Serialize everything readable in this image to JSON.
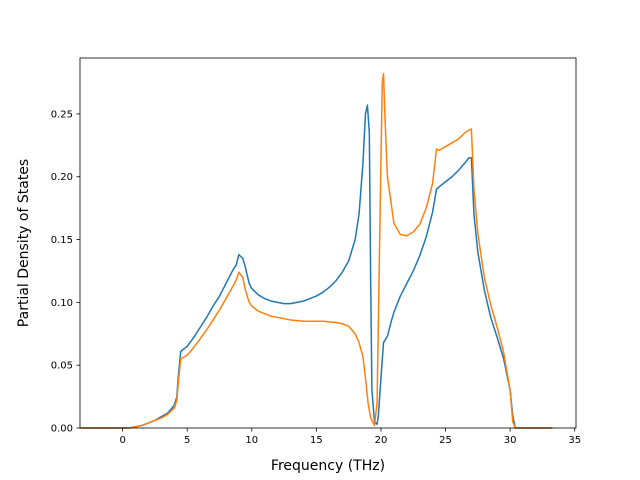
{
  "chart_data": {
    "type": "line",
    "title": "",
    "xlabel": "Frequency (THz)",
    "ylabel": "Partial Density of States",
    "xlim": [
      -3.3,
      35.1
    ],
    "ylim": [
      0.0,
      0.2945
    ],
    "xticks": [
      0,
      5,
      10,
      15,
      20,
      25,
      30,
      35
    ],
    "xtick_labels": [
      "0",
      "5",
      "10",
      "15",
      "20",
      "25",
      "30",
      "35"
    ],
    "yticks": [
      0.0,
      0.05,
      0.1,
      0.15,
      0.2,
      0.25
    ],
    "ytick_labels": [
      "0.00",
      "0.05",
      "0.10",
      "0.15",
      "0.20",
      "0.25"
    ],
    "grid": false,
    "legend": "none",
    "series": [
      {
        "color": "#1f77b4",
        "x": [
          -3.2,
          -1,
          0,
          0.5,
          1,
          1.5,
          2,
          2.5,
          3,
          3.5,
          4,
          4.2,
          4.3,
          4.5,
          5,
          5.5,
          6,
          6.5,
          7,
          7.5,
          8,
          8.5,
          8.8,
          9.0,
          9.3,
          9.5,
          9.8,
          10,
          10.5,
          11,
          11.5,
          12,
          12.5,
          13,
          13.5,
          14,
          14.5,
          15,
          15.5,
          16,
          16.5,
          17,
          17.5,
          18,
          18.3,
          18.6,
          18.8,
          18.95,
          19.1,
          19.2,
          19.3,
          19.5,
          19.7,
          19.8,
          20.0,
          20.2,
          20.5,
          20.8,
          21.0,
          21.5,
          22,
          22.5,
          23,
          23.5,
          24,
          24.3,
          24.5,
          25,
          25.5,
          26,
          26.5,
          26.8,
          27.0,
          27.2,
          27.5,
          28,
          28.5,
          29,
          29.5,
          30,
          30.2,
          30.4,
          31,
          33.2
        ],
        "y": [
          0.0,
          0.0,
          0.0,
          0.0,
          0.001,
          0.002,
          0.004,
          0.006,
          0.009,
          0.012,
          0.018,
          0.025,
          0.04,
          0.061,
          0.065,
          0.072,
          0.08,
          0.088,
          0.097,
          0.105,
          0.115,
          0.125,
          0.13,
          0.138,
          0.135,
          0.128,
          0.115,
          0.111,
          0.106,
          0.103,
          0.101,
          0.1,
          0.099,
          0.099,
          0.1,
          0.101,
          0.103,
          0.105,
          0.108,
          0.112,
          0.117,
          0.124,
          0.133,
          0.15,
          0.17,
          0.21,
          0.25,
          0.257,
          0.235,
          0.12,
          0.03,
          0.005,
          0.003,
          0.01,
          0.04,
          0.068,
          0.073,
          0.085,
          0.092,
          0.105,
          0.115,
          0.125,
          0.137,
          0.152,
          0.172,
          0.19,
          0.192,
          0.196,
          0.2,
          0.205,
          0.211,
          0.215,
          0.215,
          0.17,
          0.14,
          0.11,
          0.088,
          0.072,
          0.055,
          0.03,
          0.01,
          0.0,
          0.0,
          0.0
        ]
      },
      {
        "color": "#ff7f0e",
        "x": [
          -3.2,
          -1,
          0,
          0.5,
          1,
          1.5,
          2,
          2.5,
          3,
          3.5,
          4,
          4.2,
          4.3,
          4.5,
          5,
          5.5,
          6,
          6.5,
          7,
          7.5,
          8,
          8.5,
          8.8,
          9.0,
          9.3,
          9.5,
          9.8,
          10,
          10.5,
          11,
          11.5,
          12,
          12.5,
          13,
          13.5,
          14,
          14.5,
          15,
          15.5,
          16,
          16.5,
          17,
          17.5,
          18,
          18.3,
          18.6,
          18.8,
          19.0,
          19.2,
          19.5,
          19.7,
          19.9,
          20.1,
          20.2,
          20.3,
          20.5,
          20.8,
          21.0,
          21.5,
          22,
          22.5,
          23,
          23.5,
          24,
          24.3,
          24.5,
          25,
          25.5,
          26,
          26.5,
          26.8,
          27.0,
          27.2,
          27.5,
          28,
          28.5,
          29,
          29.5,
          30,
          30.2,
          30.4,
          31,
          33.2
        ],
        "y": [
          0.0,
          0.0,
          0.0,
          0.0,
          0.001,
          0.002,
          0.004,
          0.006,
          0.008,
          0.011,
          0.016,
          0.022,
          0.035,
          0.055,
          0.058,
          0.064,
          0.071,
          0.078,
          0.086,
          0.094,
          0.103,
          0.112,
          0.118,
          0.124,
          0.12,
          0.11,
          0.1,
          0.097,
          0.093,
          0.091,
          0.089,
          0.088,
          0.087,
          0.086,
          0.0855,
          0.085,
          0.085,
          0.085,
          0.085,
          0.0845,
          0.084,
          0.083,
          0.081,
          0.075,
          0.068,
          0.057,
          0.04,
          0.02,
          0.008,
          0.002,
          0.02,
          0.15,
          0.275,
          0.282,
          0.25,
          0.2,
          0.178,
          0.163,
          0.154,
          0.153,
          0.156,
          0.162,
          0.175,
          0.195,
          0.222,
          0.221,
          0.224,
          0.227,
          0.23,
          0.235,
          0.237,
          0.238,
          0.19,
          0.155,
          0.12,
          0.098,
          0.08,
          0.06,
          0.03,
          0.005,
          0.0,
          0.0,
          0.0
        ]
      }
    ]
  }
}
